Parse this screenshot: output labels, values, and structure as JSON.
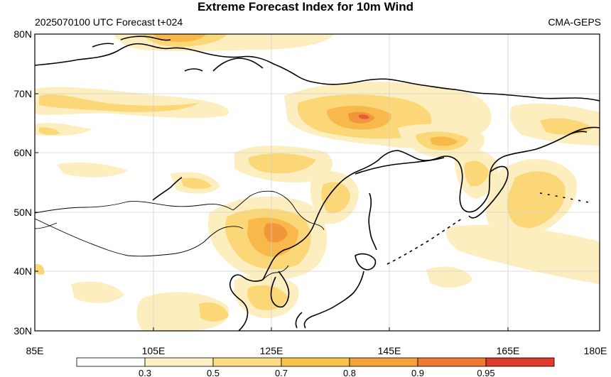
{
  "header": {
    "title": "Extreme Forecast Index for 10m Wind",
    "run_info": "2025070100 UTC Forecast t+024",
    "model": "CMA-GEPS"
  },
  "map": {
    "lat_labels": [
      "80N",
      "70N",
      "60N",
      "50N",
      "40N",
      "30N"
    ],
    "lon_labels": [
      "85E",
      "105E",
      "125E",
      "145E",
      "165E",
      "180E"
    ],
    "grid": true,
    "colors": {
      "coast": "#000000",
      "shade_level_1": "#fdeebf",
      "shade_level_2": "#fbd777",
      "shade_level_3": "#f8b84a",
      "shade_level_4": "#f2963c",
      "shade_level_5": "#e85a38"
    }
  },
  "colorbar": {
    "thresholds": [
      "0.3",
      "0.5",
      "0.7",
      "0.8",
      "0.9",
      "0.95"
    ],
    "colors": [
      "#ffffff",
      "#fdf0c4",
      "#fcdc84",
      "#f9c24a",
      "#f4a43a",
      "#f07a34",
      "#e03a2c"
    ]
  }
}
